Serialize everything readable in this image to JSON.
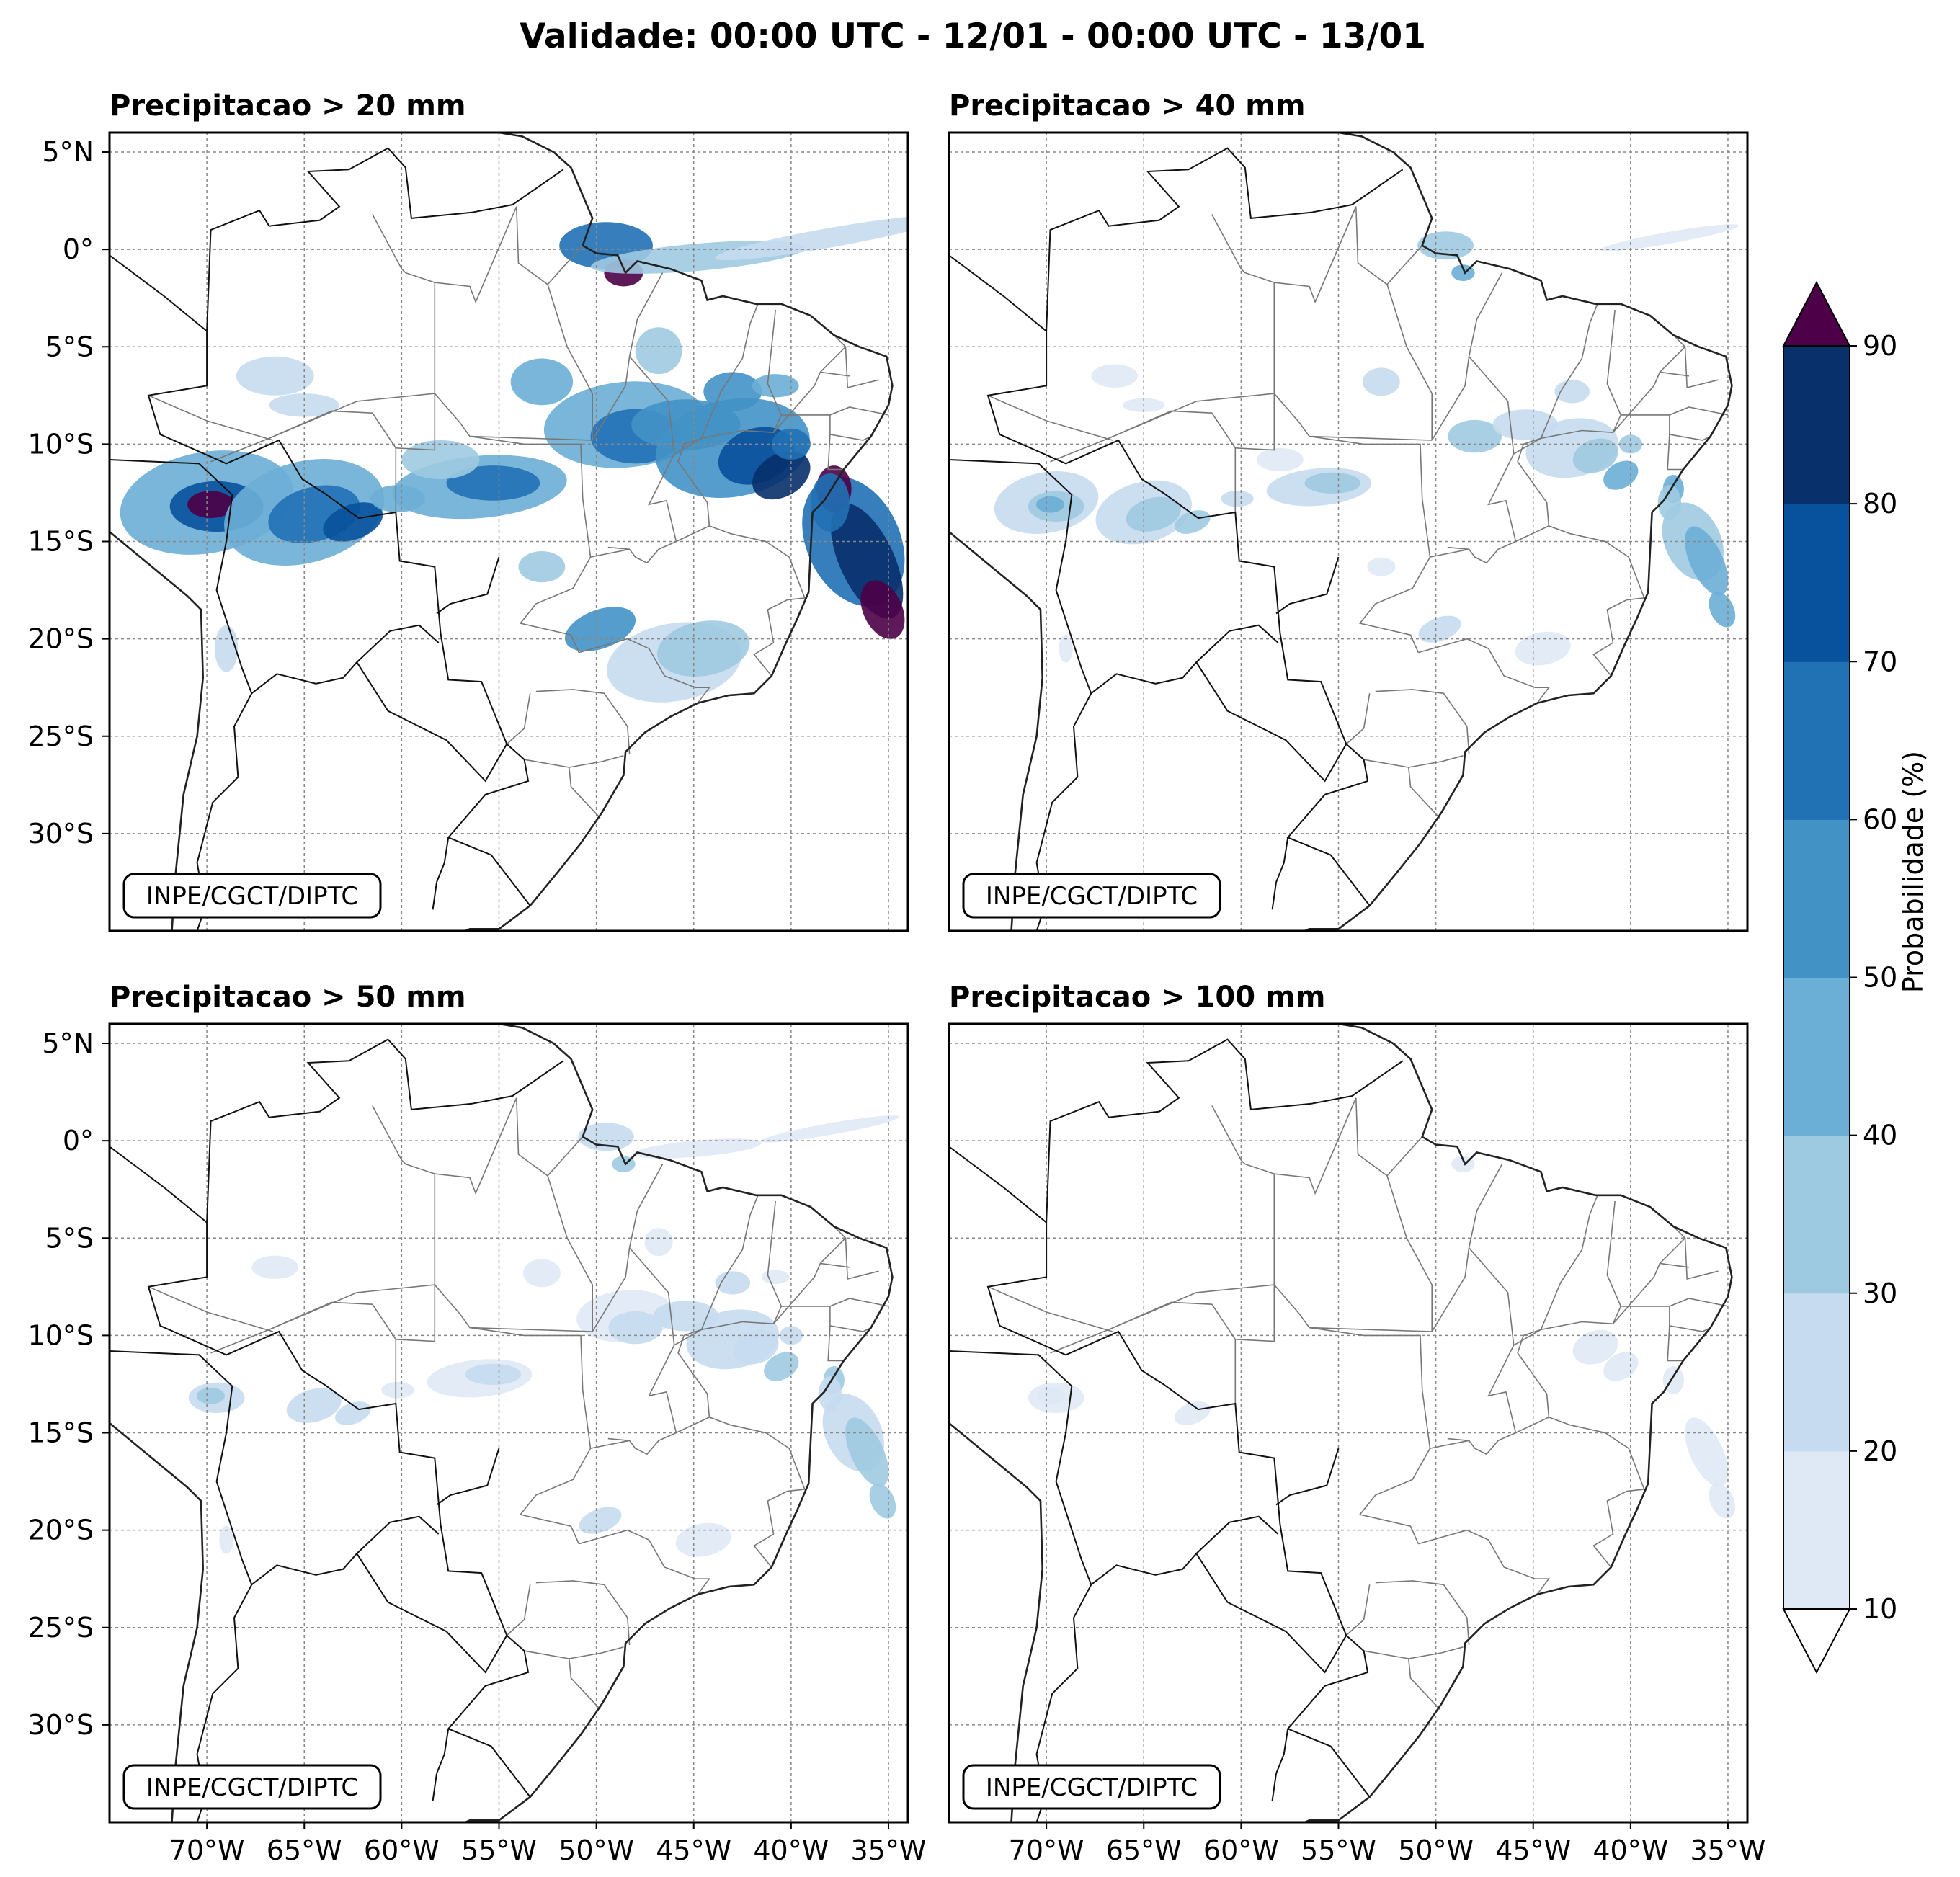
{
  "figure": {
    "title": "Validade: 00:00 UTC - 12/01 - 00:00 UTC - 13/01"
  },
  "panels": [
    {
      "id": "p20",
      "title": "Precipitacao > 20 mm",
      "credit": "INPE/CGCT/DIPTC",
      "intensity": 1.0
    },
    {
      "id": "p40",
      "title": "Precipitacao > 40 mm",
      "credit": "INPE/CGCT/DIPTC",
      "intensity": 0.45
    },
    {
      "id": "p50",
      "title": "Precipitacao > 50 mm",
      "credit": "INPE/CGCT/DIPTC",
      "intensity": 0.3
    },
    {
      "id": "p100",
      "title": "Precipitacao > 100 mm",
      "credit": "INPE/CGCT/DIPTC",
      "intensity": 0.12
    }
  ],
  "axes": {
    "lat_ticks": [
      "5°N",
      "0°",
      "5°S",
      "10°S",
      "15°S",
      "20°S",
      "25°S",
      "30°S"
    ],
    "lon_ticks": [
      "70°W",
      "65°W",
      "60°W",
      "55°W",
      "50°W",
      "45°W",
      "40°W",
      "35°W"
    ],
    "lat_values": [
      5,
      0,
      -5,
      -10,
      -15,
      -20,
      -25,
      -30
    ],
    "lon_values": [
      -70,
      -65,
      -60,
      -55,
      -50,
      -45,
      -40,
      -35
    ],
    "lon_range": [
      -75,
      -34
    ],
    "lat_range": [
      -35,
      6
    ]
  },
  "colorbar": {
    "label": "Probabilidade (%)",
    "tick_labels": [
      "10",
      "20",
      "30",
      "40",
      "50",
      "60",
      "70",
      "80",
      "90"
    ],
    "colors": [
      "#dfe9f5",
      "#c6dbef",
      "#9ecae1",
      "#6baed6",
      "#4292c6",
      "#2171b5",
      "#08519c",
      "#08306b"
    ],
    "over_color": "#4d0047",
    "under_color": "#ffffff"
  }
}
